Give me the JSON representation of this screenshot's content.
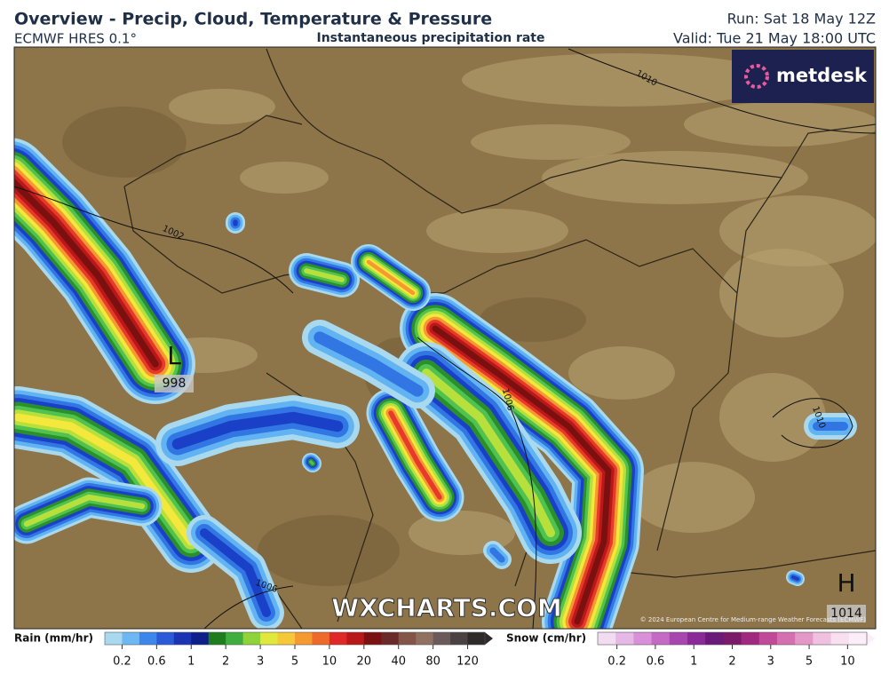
{
  "header": {
    "title": "Overview - Precip, Cloud, Temperature & Pressure",
    "model": "ECMWF HRES 0.1°",
    "field": "Instantaneous precipitation rate",
    "run": "Run: Sat 18 May 12Z",
    "valid": "Valid: Tue 21 May 18:00 UTC"
  },
  "logo": "metdesk",
  "map": {
    "isobars": [
      "1010",
      "1002",
      "1006",
      "1010",
      "1006"
    ],
    "pressure_centers": [
      {
        "symbol": "L",
        "value": "998"
      },
      {
        "symbol": "H",
        "value": "1014"
      }
    ],
    "watermark": "WXCHARTS.COM",
    "copyright": "© 2024 European Centre for Medium-range Weather Forecasts (ECMWF)"
  },
  "legend": {
    "rain": {
      "label": "Rain (mm/hr)",
      "ticks": [
        "0.2",
        "0.6",
        "1",
        "2",
        "3",
        "5",
        "10",
        "20",
        "40",
        "80",
        "120"
      ]
    },
    "snow": {
      "label": "Snow (cm/hr)",
      "ticks": [
        "0.2",
        "0.6",
        "1",
        "2",
        "3",
        "5",
        "10"
      ]
    }
  }
}
